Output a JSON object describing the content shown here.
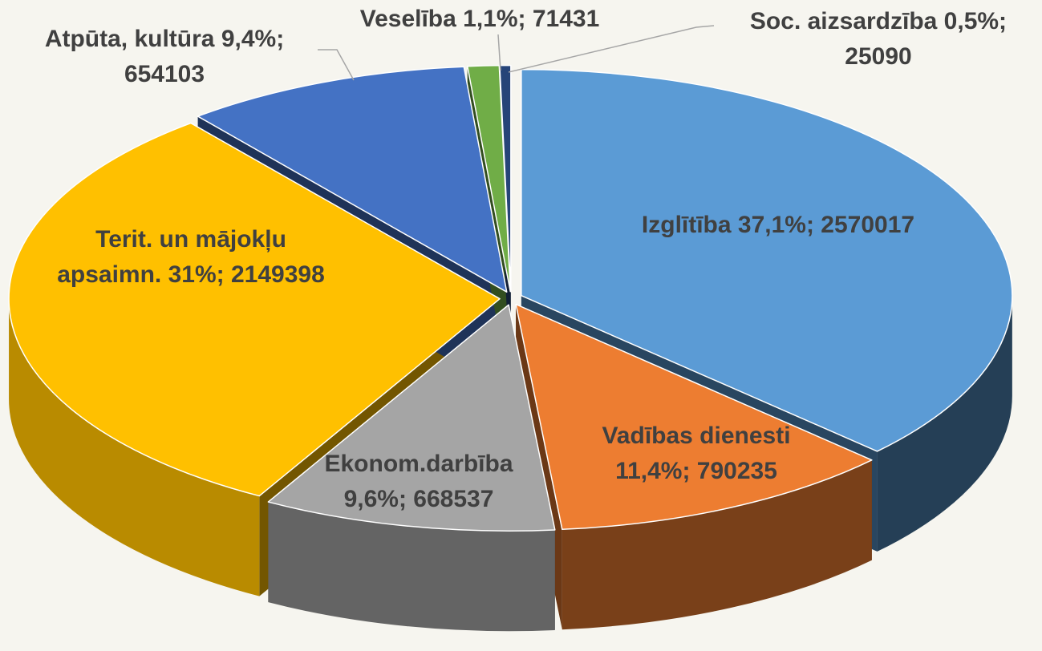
{
  "chart_data": {
    "type": "pie3d",
    "values": [
      2570017,
      790235,
      668537,
      2149398,
      654103,
      71431,
      25090
    ],
    "value_labels": [
      [
        "Izglītība 37,1%; 2570017"
      ],
      [
        "Vadības dienesti",
        "11,4%; 790235"
      ],
      [
        "Ekonom.darbība",
        "9,6%; 668537"
      ],
      [
        "Terit. un mājokļu",
        "apsaimn. 31%; 2149398"
      ],
      [
        "Atpūta, kultūra 9,4%;",
        "654103"
      ],
      [
        "Veselība 1,1%; 71431"
      ],
      [
        "Soc. aizsardzība 0,5%;",
        "25090"
      ]
    ],
    "colors": [
      "#5b9bd5",
      "#ed7d31",
      "#a5a5a5",
      "#ffc000",
      "#4472c4",
      "#70ad47",
      "#264478"
    ]
  }
}
